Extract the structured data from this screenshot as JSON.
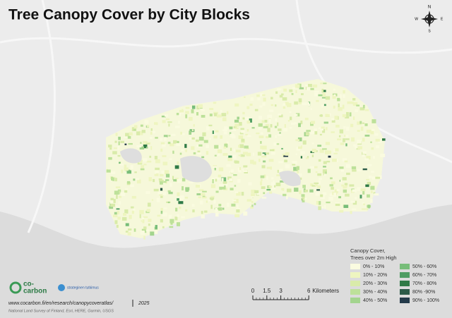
{
  "title": "Tree Canopy Cover by City Blocks",
  "compass": {
    "north": "N",
    "south": "S",
    "east": "E",
    "west": "W"
  },
  "legend": {
    "title_lines": [
      "Canopy Cover,",
      "Trees over 2m High"
    ],
    "items": [
      {
        "label": "0% - 10%",
        "color": "#fafbe0"
      },
      {
        "label": "10% - 20%",
        "color": "#eef5c0"
      },
      {
        "label": "20% - 30%",
        "color": "#d9ebaa"
      },
      {
        "label": "30% - 40%",
        "color": "#bde19a"
      },
      {
        "label": "40% - 50%",
        "color": "#a3d48e"
      },
      {
        "label": "50% - 60%",
        "color": "#77bd79"
      },
      {
        "label": "60% - 70%",
        "color": "#4f9d63"
      },
      {
        "label": "70% - 80%",
        "color": "#2f7a46"
      },
      {
        "label": "80% -90%",
        "color": "#2b5a48"
      },
      {
        "label": "90% - 100%",
        "color": "#243a4a"
      }
    ]
  },
  "scale_bar": {
    "ticks": [
      0,
      1.5,
      3,
      6
    ],
    "unit": "Kilometers"
  },
  "logos": {
    "cocarbon_line1": "co-",
    "cocarbon_line2": "carbon",
    "strateginen": "strateginen tutkimus"
  },
  "footer": {
    "url": "www.cocarbon.fi/en/research/canopycoveratlas/",
    "year": "2025",
    "attribution": "National Land Survey of Finland, Esri, HERE, Garmin, USGS"
  }
}
